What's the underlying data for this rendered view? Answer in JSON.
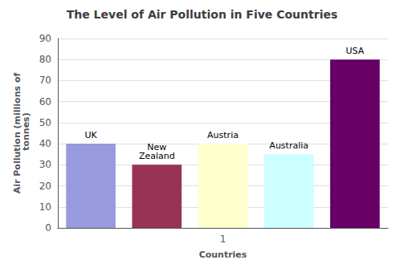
{
  "chart_data": {
    "type": "bar",
    "title": "The Level of Air Pollution in Five Countries",
    "xlabel": "Countries",
    "ylabel": "Air Pollution (millions of\n tonnes)",
    "categories": [
      null,
      null,
      "1",
      null,
      null
    ],
    "annotations": [
      "UK",
      "New\nZealand",
      "Austria",
      "Australia",
      "USA"
    ],
    "values": [
      40,
      30,
      40,
      35,
      80
    ],
    "colors": [
      "#9999dd",
      "#993355",
      "#ffffcc",
      "#ccffff",
      "#660066"
    ],
    "ylim": [
      0,
      90
    ],
    "yticks": [
      0,
      10,
      20,
      30,
      40,
      50,
      60,
      70,
      80,
      90
    ],
    "grid": true
  }
}
